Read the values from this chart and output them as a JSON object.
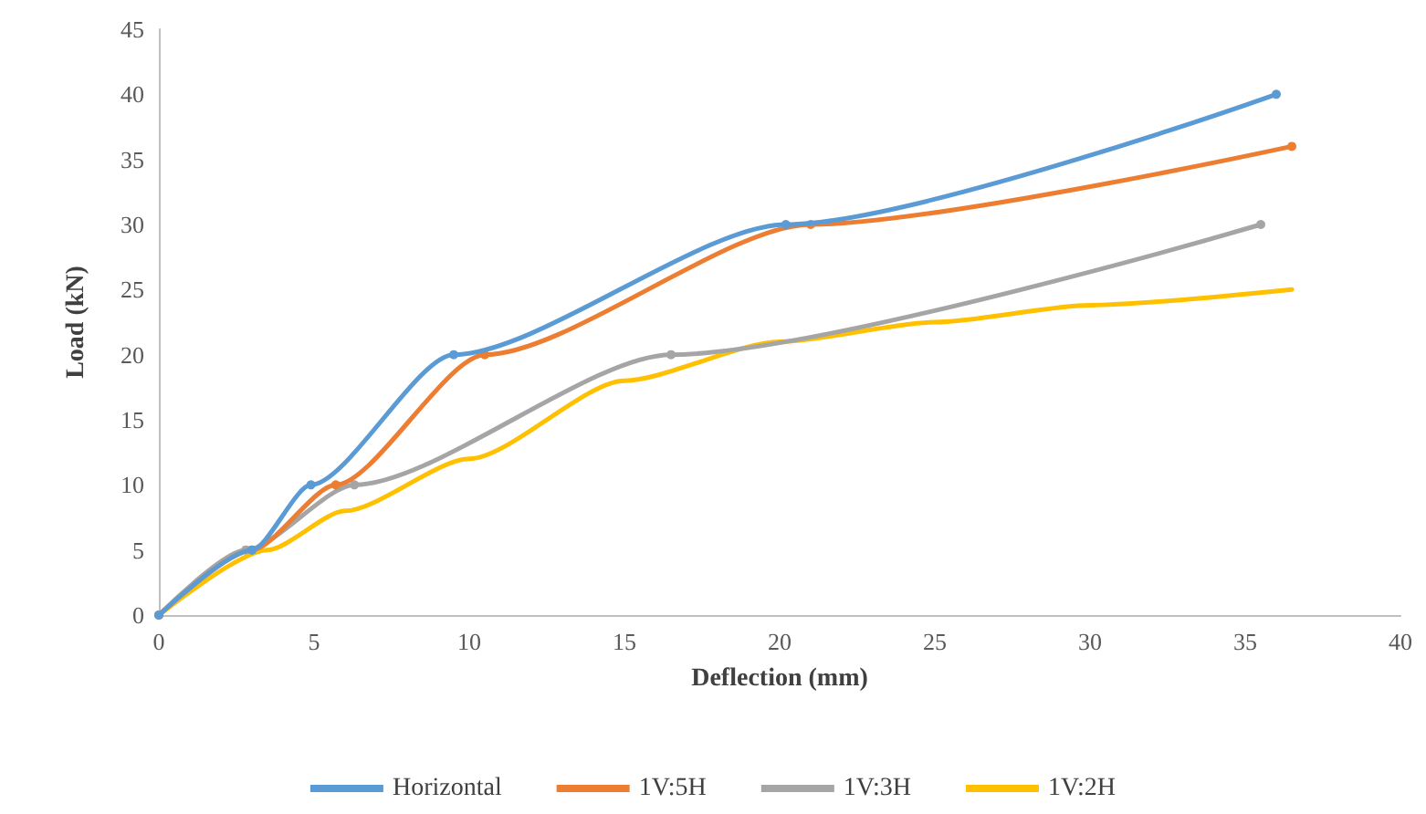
{
  "chart_data": {
    "type": "line",
    "xlabel": "Deflection (mm)",
    "ylabel": "Load (kN)",
    "xlim": [
      0,
      40
    ],
    "xticks": [
      0,
      5,
      10,
      15,
      20,
      25,
      30,
      35,
      40
    ],
    "ylim": [
      0,
      45
    ],
    "yticks": [
      0,
      5,
      10,
      15,
      20,
      25,
      30,
      35,
      40,
      45
    ],
    "grid": false,
    "legend": "bottom",
    "marker": "circle",
    "line_style": "solid",
    "series": [
      {
        "name": "Horizontal",
        "color": "#5b9bd5",
        "x": [
          0,
          3,
          4.9,
          9.5,
          20.2,
          36
        ],
        "values": [
          0,
          5,
          10,
          20,
          30,
          40
        ]
      },
      {
        "name": "1V:5H",
        "color": "#ed7d31",
        "x": [
          0,
          3,
          5.7,
          10.5,
          21,
          36.5
        ],
        "values": [
          0,
          5,
          10,
          20,
          30,
          36
        ]
      },
      {
        "name": "1V:3H",
        "color": "#a5a5a5",
        "x": [
          0,
          2.8,
          6.3,
          16.5,
          35.5
        ],
        "values": [
          0,
          5,
          10,
          20,
          30
        ]
      },
      {
        "name": "1V:2H",
        "color": "#ffc000",
        "marker": "none",
        "x": [
          0,
          3.5,
          6,
          10,
          15,
          20,
          25,
          30,
          36.5
        ],
        "values": [
          0,
          5,
          8,
          12,
          18,
          21,
          22.5,
          23.8,
          25
        ]
      }
    ]
  }
}
